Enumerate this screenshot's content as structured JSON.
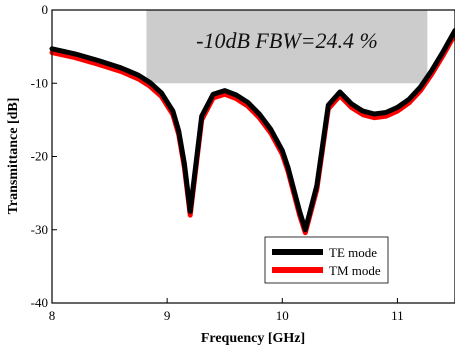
{
  "chart_data": {
    "type": "line",
    "xlabel": "Frequency [GHz]",
    "ylabel": "Transmittance [dB]",
    "xlim": [
      8,
      11.5
    ],
    "ylim": [
      -40,
      0
    ],
    "xticks": [
      8,
      9,
      10,
      11
    ],
    "yticks": [
      0,
      -10,
      -20,
      -30,
      -40
    ],
    "grid": false,
    "legend_position": "bottom-right",
    "annotation": {
      "text": "-10dB FBW=24.4 %",
      "band_x": [
        8.82,
        11.26
      ],
      "band_y": [
        -10,
        0
      ],
      "band_color": "#cccccc"
    },
    "series": [
      {
        "name": "TE mode",
        "color": "#000000",
        "x": [
          8.0,
          8.2,
          8.4,
          8.6,
          8.75,
          8.85,
          8.95,
          9.05,
          9.1,
          9.15,
          9.2,
          9.3,
          9.4,
          9.5,
          9.6,
          9.7,
          9.8,
          9.9,
          10.0,
          10.05,
          10.1,
          10.15,
          10.2,
          10.3,
          10.4,
          10.5,
          10.6,
          10.7,
          10.8,
          10.9,
          11.0,
          11.1,
          11.2,
          11.3,
          11.4,
          11.5
        ],
        "y": [
          -5.3,
          -6.0,
          -6.9,
          -7.9,
          -8.9,
          -9.9,
          -11.3,
          -13.8,
          -16.5,
          -21.0,
          -27.5,
          -14.5,
          -11.5,
          -11.0,
          -11.6,
          -12.6,
          -14.2,
          -16.3,
          -19.2,
          -21.5,
          -24.5,
          -27.5,
          -30.0,
          -24.0,
          -13.0,
          -11.2,
          -12.8,
          -13.8,
          -14.2,
          -14.0,
          -13.3,
          -12.2,
          -10.5,
          -8.2,
          -5.6,
          -2.8
        ]
      },
      {
        "name": "TM mode",
        "color": "#ff0000",
        "x": [
          8.0,
          8.2,
          8.4,
          8.6,
          8.75,
          8.85,
          8.95,
          9.05,
          9.1,
          9.15,
          9.2,
          9.3,
          9.4,
          9.5,
          9.6,
          9.7,
          9.8,
          9.9,
          10.0,
          10.05,
          10.1,
          10.15,
          10.2,
          10.3,
          10.4,
          10.5,
          10.6,
          10.7,
          10.8,
          10.9,
          11.0,
          11.1,
          11.2,
          11.3,
          11.4,
          11.5
        ],
        "y": [
          -5.8,
          -6.5,
          -7.4,
          -8.4,
          -9.4,
          -10.4,
          -11.8,
          -14.3,
          -17.0,
          -21.5,
          -28.0,
          -15.0,
          -12.0,
          -11.5,
          -12.1,
          -13.1,
          -14.7,
          -16.8,
          -19.7,
          -22.0,
          -25.0,
          -28.0,
          -30.4,
          -24.5,
          -13.5,
          -11.7,
          -13.3,
          -14.3,
          -14.7,
          -14.5,
          -13.8,
          -12.7,
          -11.0,
          -8.7,
          -6.1,
          -3.3
        ]
      }
    ]
  }
}
